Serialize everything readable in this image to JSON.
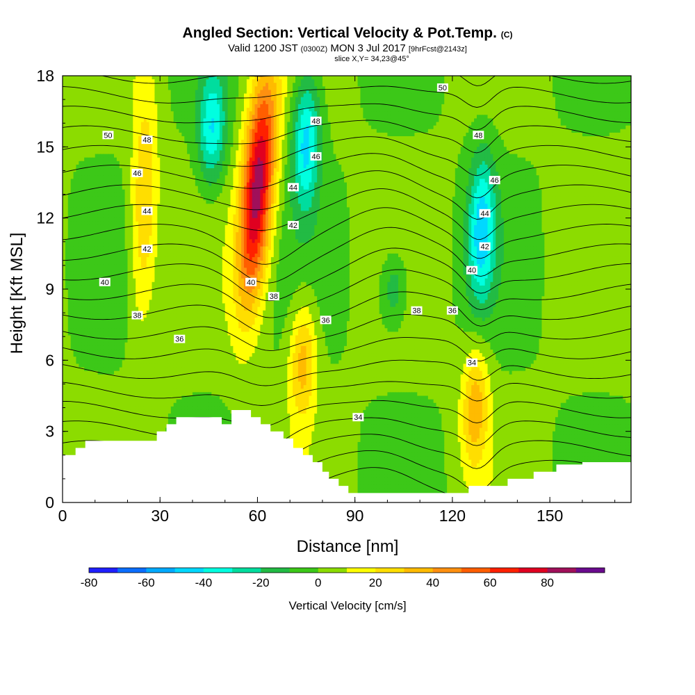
{
  "header": {
    "title": "Angled Section: Vertical Velocity & Pot.Temp.",
    "title_unit": "(C)",
    "valid_prefix": "Valid 1200 JST",
    "valid_utc": "(0300Z)",
    "valid_date": "MON 3 Jul 2017",
    "forecast": "[9hrFcst@2143z]",
    "slice": "slice X,Y= 34,23@45°"
  },
  "colorbar": {
    "title": "Vertical Velocity [cm/s]",
    "levels": [
      -80,
      -70,
      -60,
      -50,
      -40,
      -30,
      -20,
      -10,
      0,
      10,
      20,
      30,
      40,
      50,
      60,
      70,
      80,
      90
    ],
    "colors": [
      "#1f1fff",
      "#0a6eff",
      "#00aaff",
      "#00d8ff",
      "#00ffe0",
      "#00dd9e",
      "#22bb44",
      "#3cc818",
      "#8cdc00",
      "#ffff00",
      "#ffde00",
      "#ffbb00",
      "#ff9010",
      "#ff5e00",
      "#ff2000",
      "#e00020",
      "#a0105a",
      "#6a0a8e"
    ],
    "tick_labels": [
      "-80",
      "-60",
      "-40",
      "-20",
      "0",
      "20",
      "40",
      "60",
      "80"
    ],
    "tick_values": [
      -80,
      -60,
      -40,
      -20,
      0,
      20,
      40,
      60,
      80
    ]
  },
  "chart_data": {
    "type": "contour",
    "x_axis": {
      "label": "Distance [nm]",
      "range": [
        0,
        175
      ],
      "ticks": [
        0,
        30,
        60,
        90,
        120,
        150
      ]
    },
    "y_axis": {
      "label": "Height [Kft MSL]",
      "range": [
        0,
        18
      ],
      "ticks": [
        0,
        3,
        6,
        9,
        12,
        15,
        18
      ]
    },
    "field_1": "Vertical Velocity [cm/s] (filled)",
    "field_2": "Pot.Temp. (C) (contour lines)",
    "theta_contour_levels": [
      30,
      31,
      32,
      33,
      34,
      35,
      36,
      37,
      38,
      39,
      40,
      41,
      42,
      43,
      44,
      45,
      46,
      47,
      48,
      49,
      50,
      51
    ],
    "theta_contour_labels": [
      {
        "x": 14,
        "y": 15.5,
        "text": "50"
      },
      {
        "x": 26,
        "y": 15.3,
        "text": "48"
      },
      {
        "x": 23,
        "y": 13.9,
        "text": "46"
      },
      {
        "x": 26,
        "y": 12.3,
        "text": "44"
      },
      {
        "x": 26,
        "y": 10.7,
        "text": "42"
      },
      {
        "x": 13,
        "y": 9.3,
        "text": "40"
      },
      {
        "x": 23,
        "y": 7.9,
        "text": "38"
      },
      {
        "x": 36,
        "y": 6.9,
        "text": "36"
      },
      {
        "x": 58,
        "y": 9.3,
        "text": "40"
      },
      {
        "x": 65,
        "y": 8.7,
        "text": "38"
      },
      {
        "x": 71,
        "y": 13.3,
        "text": "44"
      },
      {
        "x": 71,
        "y": 11.7,
        "text": "42"
      },
      {
        "x": 78,
        "y": 16.1,
        "text": "48"
      },
      {
        "x": 78,
        "y": 14.6,
        "text": "46"
      },
      {
        "x": 81,
        "y": 7.7,
        "text": "36"
      },
      {
        "x": 91,
        "y": 3.6,
        "text": "34"
      },
      {
        "x": 109,
        "y": 8.1,
        "text": "38"
      },
      {
        "x": 120,
        "y": 8.1,
        "text": "36"
      },
      {
        "x": 126,
        "y": 5.9,
        "text": "34"
      },
      {
        "x": 126,
        "y": 9.8,
        "text": "40"
      },
      {
        "x": 130,
        "y": 10.8,
        "text": "42"
      },
      {
        "x": 130,
        "y": 12.2,
        "text": "44"
      },
      {
        "x": 133,
        "y": 13.6,
        "text": "46"
      },
      {
        "x": 128,
        "y": 15.5,
        "text": "48"
      },
      {
        "x": 117,
        "y": 17.5,
        "text": "50"
      }
    ],
    "vertical_velocity_features": [
      {
        "x": 60,
        "y_range": [
          9,
          17.5
        ],
        "peak": 85,
        "note": "strong updraft core (max ~80-90 cm/s)"
      },
      {
        "x": 74,
        "y_range": [
          4,
          8
        ],
        "peak": 35,
        "note": "updraft"
      },
      {
        "x": 25,
        "y_range": [
          8,
          17
        ],
        "peak": 30,
        "note": "updraft band"
      },
      {
        "x": 127,
        "y_range": [
          2,
          6
        ],
        "peak": 35,
        "note": "updraft"
      },
      {
        "x": 75,
        "y_range": [
          13,
          17.5
        ],
        "peak": -45,
        "note": "downdraft"
      },
      {
        "x": 129,
        "y_range": [
          9,
          14
        ],
        "peak": -45,
        "note": "downdraft"
      },
      {
        "x": 46,
        "y_range": [
          14,
          17.5
        ],
        "peak": -40,
        "note": "downdraft"
      },
      {
        "x": 102,
        "y_range": [
          8,
          10
        ],
        "peak": -22,
        "note": "weak downdraft"
      }
    ],
    "terrain": [
      [
        0,
        2
      ],
      [
        4,
        2
      ],
      [
        4,
        2.3
      ],
      [
        7,
        2.3
      ],
      [
        7,
        2.6
      ],
      [
        29,
        2.6
      ],
      [
        29,
        3
      ],
      [
        32,
        3
      ],
      [
        32,
        3.3
      ],
      [
        35,
        3.3
      ],
      [
        35,
        3.6
      ],
      [
        49,
        3.6
      ],
      [
        49,
        3.3
      ],
      [
        52,
        3.3
      ],
      [
        52,
        3.9
      ],
      [
        58,
        3.9
      ],
      [
        58,
        3.6
      ],
      [
        61,
        3.6
      ],
      [
        61,
        3.3
      ],
      [
        64,
        3.3
      ],
      [
        64,
        3
      ],
      [
        68,
        3
      ],
      [
        68,
        2.7
      ],
      [
        71,
        2.7
      ],
      [
        71,
        2.3
      ],
      [
        74,
        2.3
      ],
      [
        74,
        2
      ],
      [
        77,
        2
      ],
      [
        77,
        1.7
      ],
      [
        80,
        1.7
      ],
      [
        80,
        1.3
      ],
      [
        82,
        1.3
      ],
      [
        82,
        1
      ],
      [
        85,
        1
      ],
      [
        85,
        0.7
      ],
      [
        88,
        0.7
      ],
      [
        88,
        0.4
      ],
      [
        100,
        0.4
      ],
      [
        125,
        0.4
      ],
      [
        125,
        0.7
      ],
      [
        137,
        0.7
      ],
      [
        137,
        1
      ],
      [
        145,
        1
      ],
      [
        145,
        1.3
      ],
      [
        152,
        1.3
      ],
      [
        152,
        1.6
      ],
      [
        160,
        1.6
      ],
      [
        160,
        1.7
      ],
      [
        175,
        1.7
      ]
    ]
  }
}
